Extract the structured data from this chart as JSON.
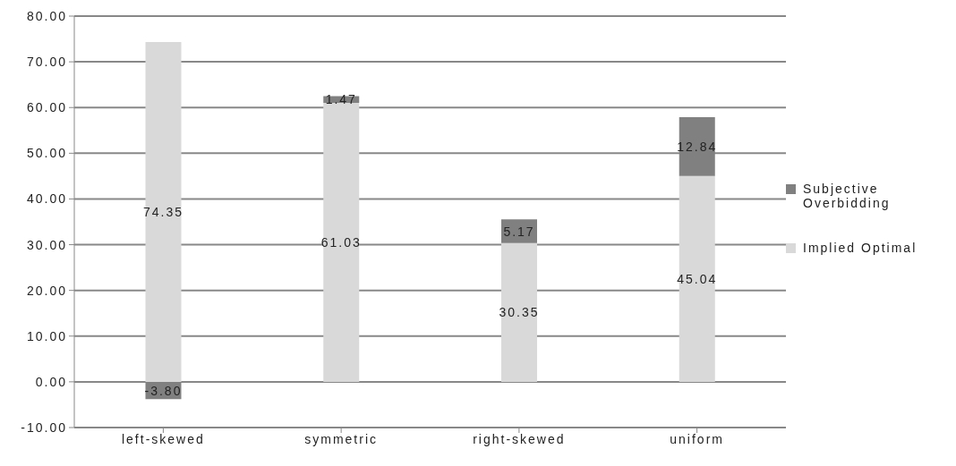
{
  "chart_data": {
    "type": "bar",
    "stacked": true,
    "categories": [
      "left-skewed",
      "symmetric",
      "right-skewed",
      "uniform"
    ],
    "series": [
      {
        "name": "Implied Optimal",
        "color": "#d9d9d9",
        "values": [
          74.35,
          61.03,
          30.35,
          45.04
        ],
        "value_labels": [
          "74.35",
          "61.03",
          "30.35",
          "45.04"
        ]
      },
      {
        "name": "Subjective Overbidding",
        "color": "#808080",
        "values": [
          -3.8,
          1.47,
          5.17,
          12.84
        ],
        "value_labels": [
          "-3.80",
          "1.47",
          "5.17",
          "12.84"
        ]
      }
    ],
    "ylim": [
      -10,
      80
    ],
    "yticks": [
      {
        "value": -10,
        "label": "-10.00"
      },
      {
        "value": 0,
        "label": "0.00"
      },
      {
        "value": 10,
        "label": "10.00"
      },
      {
        "value": 20,
        "label": "20.00"
      },
      {
        "value": 30,
        "label": "30.00"
      },
      {
        "value": 40,
        "label": "40.00"
      },
      {
        "value": 50,
        "label": "50.00"
      },
      {
        "value": 60,
        "label": "60.00"
      },
      {
        "value": 70,
        "label": "70.00"
      },
      {
        "value": 80,
        "label": "80.00"
      }
    ],
    "grid": "y",
    "legend": "right"
  }
}
